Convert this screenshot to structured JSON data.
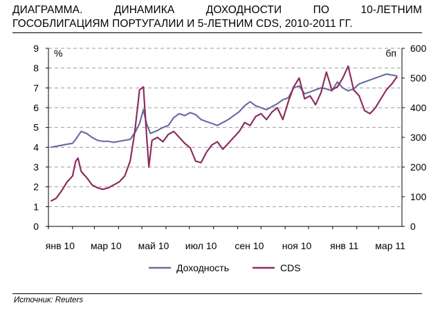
{
  "title": {
    "line1": "ДИАГРАММА. ДИНАМИКА ДОХОДНОСТИ ПО 10-ЛЕТНИМ",
    "line2": "ГОСОБЛИГАЦИЯМ ПОРТУГАЛИИ И 5-ЛЕТНИМ CDS, 2010-2011 ГГ."
  },
  "source": "Источник: Reuters",
  "chart_data": {
    "type": "line",
    "left_axis": {
      "unit": "%",
      "ylim": [
        0,
        9
      ],
      "ticks": [
        "0",
        "1",
        "2",
        "3",
        "4",
        "5",
        "6",
        "7",
        "8",
        "9"
      ]
    },
    "right_axis": {
      "unit": "бп",
      "ylim": [
        0,
        600
      ],
      "ticks": [
        "0",
        "100",
        "200",
        "300",
        "400",
        "500",
        "600"
      ]
    },
    "x_ticks": [
      "янв 10",
      "мар 10",
      "май 10",
      "июл 10",
      "сен 10",
      "ноя 10",
      "янв 11",
      "мар 11"
    ],
    "grid": "horizontal dashed",
    "legend_position": "bottom",
    "series": [
      {
        "name": "Доходность",
        "axis": "left",
        "color": "#6c6ca3",
        "x": [
          "2010-01-04",
          "2010-01-18",
          "2010-01-25",
          "2010-02-01",
          "2010-02-05",
          "2010-02-12",
          "2010-02-19",
          "2010-02-26",
          "2010-03-05",
          "2010-03-12",
          "2010-03-19",
          "2010-03-26",
          "2010-04-02",
          "2010-04-09",
          "2010-04-16",
          "2010-04-23",
          "2010-04-28",
          "2010-05-03",
          "2010-05-07",
          "2010-05-12",
          "2010-05-21",
          "2010-05-28",
          "2010-06-04",
          "2010-06-11",
          "2010-06-18",
          "2010-06-25",
          "2010-07-02",
          "2010-07-09",
          "2010-07-16",
          "2010-07-23",
          "2010-07-30",
          "2010-08-06",
          "2010-08-13",
          "2010-08-20",
          "2010-08-27",
          "2010-09-03",
          "2010-09-10",
          "2010-09-17",
          "2010-09-24",
          "2010-10-01",
          "2010-10-08",
          "2010-10-15",
          "2010-10-22",
          "2010-10-29",
          "2010-11-05",
          "2010-11-12",
          "2010-11-19",
          "2010-11-26",
          "2010-12-03",
          "2010-12-10",
          "2010-12-17",
          "2010-12-24",
          "2010-12-31",
          "2011-01-07",
          "2011-01-14",
          "2011-01-21",
          "2011-01-28",
          "2011-02-04",
          "2011-02-11",
          "2011-02-18",
          "2011-02-25",
          "2011-03-04",
          "2011-03-11",
          "2011-03-18",
          "2011-03-25"
        ],
        "values": [
          4.0,
          4.1,
          4.15,
          4.2,
          4.4,
          4.8,
          4.7,
          4.5,
          4.35,
          4.3,
          4.3,
          4.25,
          4.3,
          4.35,
          4.4,
          4.8,
          5.2,
          5.9,
          5.2,
          4.7,
          4.85,
          5.0,
          5.1,
          5.5,
          5.7,
          5.6,
          5.75,
          5.65,
          5.4,
          5.3,
          5.2,
          5.1,
          5.25,
          5.4,
          5.6,
          5.8,
          6.1,
          6.3,
          6.1,
          6.0,
          5.9,
          6.05,
          6.2,
          6.4,
          6.5,
          7.0,
          7.1,
          6.7,
          6.8,
          6.9,
          7.0,
          6.95,
          6.85,
          7.3,
          7.0,
          6.85,
          6.95,
          7.2,
          7.3,
          7.4,
          7.5,
          7.6,
          7.7,
          7.65,
          7.6
        ]
      },
      {
        "name": "CDS",
        "axis": "right",
        "color": "#8c2d5e",
        "x": [
          "2010-01-04",
          "2010-01-11",
          "2010-01-18",
          "2010-01-25",
          "2010-02-01",
          "2010-02-05",
          "2010-02-08",
          "2010-02-12",
          "2010-02-19",
          "2010-02-26",
          "2010-03-05",
          "2010-03-12",
          "2010-03-19",
          "2010-03-26",
          "2010-04-02",
          "2010-04-09",
          "2010-04-16",
          "2010-04-22",
          "2010-04-28",
          "2010-05-03",
          "2010-05-07",
          "2010-05-10",
          "2010-05-14",
          "2010-05-21",
          "2010-05-28",
          "2010-06-04",
          "2010-06-11",
          "2010-06-18",
          "2010-06-25",
          "2010-07-02",
          "2010-07-09",
          "2010-07-16",
          "2010-07-23",
          "2010-07-30",
          "2010-08-06",
          "2010-08-13",
          "2010-08-20",
          "2010-08-27",
          "2010-09-03",
          "2010-09-10",
          "2010-09-17",
          "2010-09-24",
          "2010-10-01",
          "2010-10-08",
          "2010-10-15",
          "2010-10-22",
          "2010-10-29",
          "2010-11-05",
          "2010-11-12",
          "2010-11-19",
          "2010-11-26",
          "2010-12-03",
          "2010-12-10",
          "2010-12-17",
          "2010-12-24",
          "2010-12-31",
          "2011-01-07",
          "2011-01-14",
          "2011-01-21",
          "2011-01-28",
          "2011-02-04",
          "2011-02-11",
          "2011-02-18",
          "2011-02-25",
          "2011-03-04",
          "2011-03-11",
          "2011-03-18",
          "2011-03-25"
        ],
        "values": [
          85,
          95,
          120,
          150,
          170,
          220,
          230,
          185,
          165,
          140,
          130,
          125,
          130,
          140,
          150,
          170,
          220,
          320,
          460,
          470,
          310,
          200,
          290,
          300,
          285,
          310,
          320,
          300,
          280,
          265,
          220,
          215,
          250,
          275,
          285,
          260,
          280,
          300,
          320,
          350,
          340,
          370,
          380,
          360,
          385,
          400,
          360,
          420,
          470,
          500,
          430,
          440,
          410,
          450,
          520,
          460,
          470,
          500,
          540,
          460,
          440,
          390,
          380,
          400,
          430,
          460,
          480,
          505
        ]
      }
    ]
  },
  "legend": {
    "series1": "Доходность",
    "series2": "CDS"
  }
}
